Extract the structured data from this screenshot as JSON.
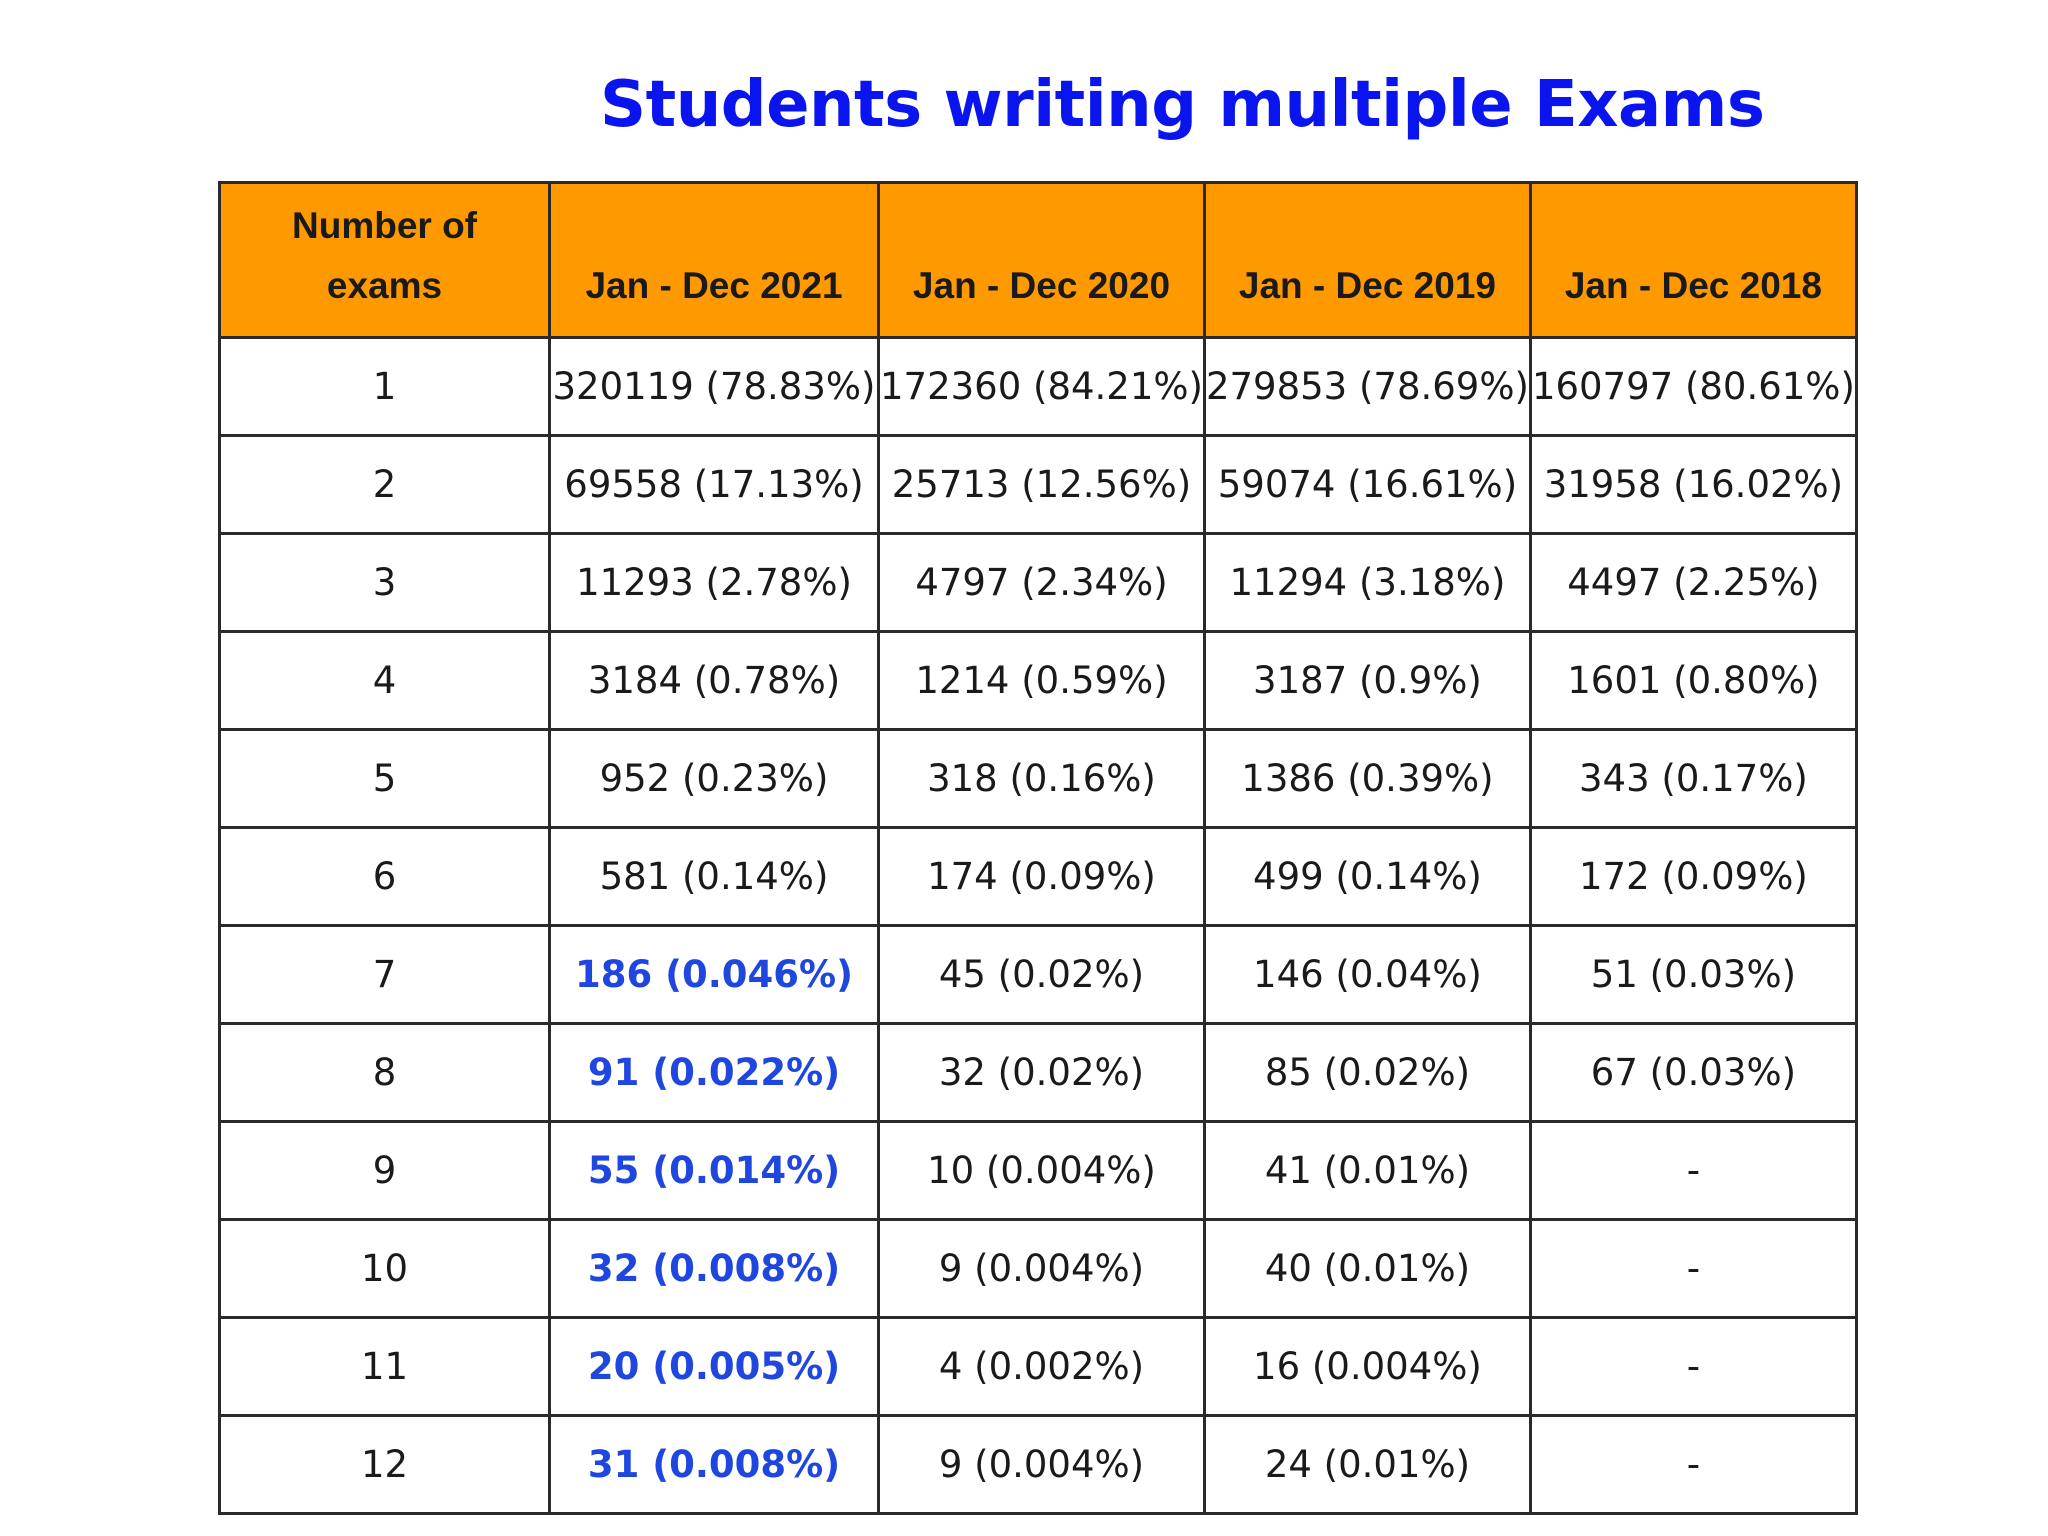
{
  "title": "Students writing multiple Exams",
  "table": {
    "header": {
      "number_of_exams_line1": "Number of",
      "number_of_exams_line2": "exams",
      "years": [
        "Jan - Dec 2021",
        "Jan - Dec 2020",
        "Jan - Dec 2019",
        "Jan - Dec 2018"
      ]
    },
    "rows": [
      {
        "exams": "1",
        "cells": [
          "320119 (78.83%)",
          "172360 (84.21%)",
          "279853 (78.69%)",
          "160797 (80.61%)"
        ]
      },
      {
        "exams": "2",
        "cells": [
          "69558 (17.13%)",
          "25713 (12.56%)",
          "59074 (16.61%)",
          "31958 (16.02%)"
        ]
      },
      {
        "exams": "3",
        "cells": [
          "11293 (2.78%)",
          "4797 (2.34%)",
          "11294 (3.18%)",
          "4497 (2.25%)"
        ]
      },
      {
        "exams": "4",
        "cells": [
          "3184 (0.78%)",
          "1214 (0.59%)",
          "3187 (0.9%)",
          "1601 (0.80%)"
        ]
      },
      {
        "exams": "5",
        "cells": [
          "952 (0.23%)",
          "318 (0.16%)",
          "1386 (0.39%)",
          "343 (0.17%)"
        ]
      },
      {
        "exams": "6",
        "cells": [
          "581 (0.14%)",
          "174 (0.09%)",
          "499 (0.14%)",
          "172 (0.09%)"
        ]
      },
      {
        "exams": "7",
        "cells": [
          "186 (0.046%)",
          "45 (0.02%)",
          "146 (0.04%)",
          "51 (0.03%)"
        ]
      },
      {
        "exams": "8",
        "cells": [
          "91 (0.022%)",
          "32 (0.02%)",
          "85 (0.02%)",
          "67 (0.03%)"
        ]
      },
      {
        "exams": "9",
        "cells": [
          "55 (0.014%)",
          "10 (0.004%)",
          "41 (0.01%)",
          "-"
        ]
      },
      {
        "exams": "10",
        "cells": [
          "32 (0.008%)",
          "9 (0.004%)",
          "40 (0.01%)",
          "-"
        ]
      },
      {
        "exams": "11",
        "cells": [
          "20 (0.005%)",
          "4 (0.002%)",
          "16 (0.004%)",
          "-"
        ]
      },
      {
        "exams": "12",
        "cells": [
          "31 (0.008%)",
          "9 (0.004%)",
          "24 (0.01%)",
          "-"
        ]
      }
    ],
    "highlighted_rows_2021": [
      "7",
      "8",
      "9",
      "10",
      "11",
      "12"
    ]
  },
  "colors": {
    "title": "#0a14ee",
    "header_background": "#ff9900",
    "highlight_text": "#1f47e0",
    "border": "#2a2a2a"
  }
}
